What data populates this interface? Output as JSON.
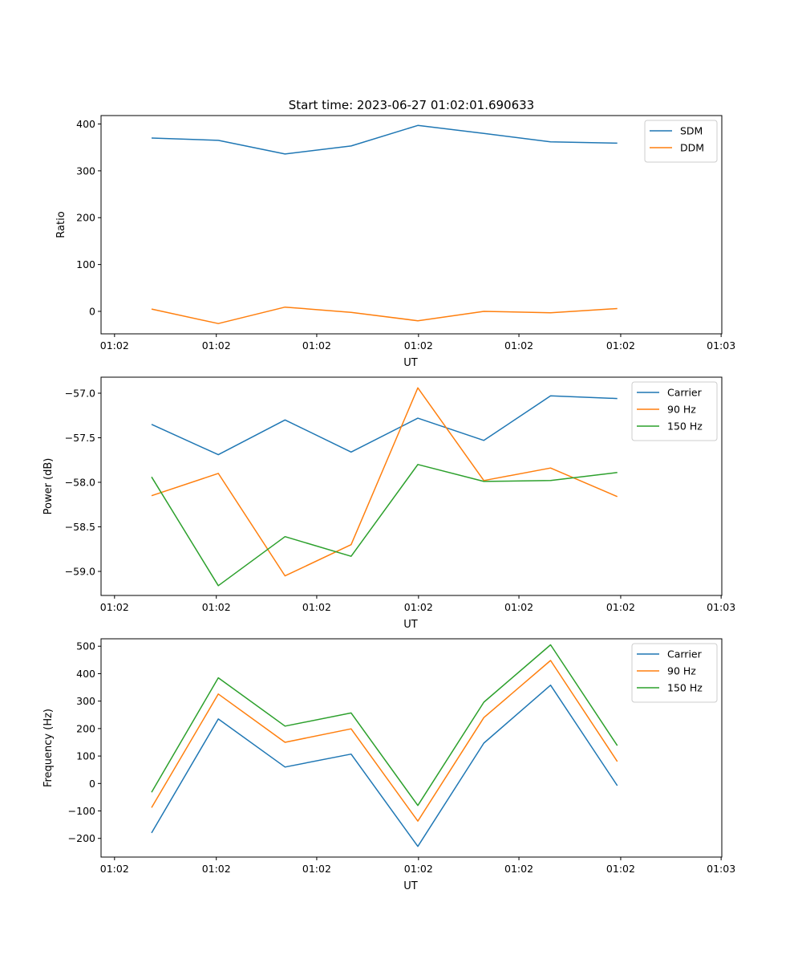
{
  "figure_title": "Start time: 2023-06-27 01:02:01.690633",
  "colors": {
    "blue": "#1f77b4",
    "orange": "#ff7f0e",
    "green": "#2ca02c"
  },
  "chart_data": [
    {
      "type": "line",
      "title": "Start time: 2023-06-27 01:02:01.690633",
      "xlabel": "UT",
      "ylabel": "Ratio",
      "xlim": [
        0,
        9.21
      ],
      "ylim": [
        -48,
        418
      ],
      "x": [
        0.75,
        1.74,
        2.73,
        3.71,
        4.7,
        5.68,
        6.67,
        7.66
      ],
      "xticks": [
        0.2,
        1.71,
        3.2,
        4.71,
        6.2,
        7.71,
        9.2
      ],
      "xticklabels": [
        "01:02",
        "01:02",
        "01:02",
        "01:02",
        "01:02",
        "01:02",
        "01:03"
      ],
      "yticks": [
        0,
        100,
        200,
        300,
        400
      ],
      "yticklabels": [
        "0",
        "100",
        "200",
        "300",
        "400"
      ],
      "grid": false,
      "legend_position": "top-right",
      "series": [
        {
          "name": "SDM",
          "color": "#1f77b4",
          "values": [
            370,
            365,
            336,
            353,
            397,
            380,
            362,
            359
          ]
        },
        {
          "name": "DDM",
          "color": "#ff7f0e",
          "values": [
            5,
            -26,
            9,
            -2,
            -20,
            0,
            -3,
            6
          ]
        }
      ]
    },
    {
      "type": "line",
      "title": "",
      "xlabel": "UT",
      "ylabel": "Power (dB)",
      "xlim": [
        0,
        9.21
      ],
      "ylim": [
        -59.27,
        -56.82
      ],
      "x": [
        0.75,
        1.74,
        2.73,
        3.71,
        4.7,
        5.68,
        6.67,
        7.66
      ],
      "xticks": [
        0.2,
        1.71,
        3.2,
        4.71,
        6.2,
        7.71,
        9.2
      ],
      "xticklabels": [
        "01:02",
        "01:02",
        "01:02",
        "01:02",
        "01:02",
        "01:02",
        "01:03"
      ],
      "yticks": [
        -57.0,
        -57.5,
        -58.0,
        -58.5,
        -59.0
      ],
      "yticklabels": [
        "−57.0",
        "−57.5",
        "−58.0",
        "−58.5",
        "−59.0"
      ],
      "grid": false,
      "legend_position": "top-right",
      "series": [
        {
          "name": "Carrier",
          "color": "#1f77b4",
          "values": [
            -57.35,
            -57.69,
            -57.3,
            -57.66,
            -57.28,
            -57.53,
            -57.03,
            -57.06
          ]
        },
        {
          "name": "90 Hz",
          "color": "#ff7f0e",
          "values": [
            -58.15,
            -57.9,
            -59.05,
            -58.7,
            -56.94,
            -57.98,
            -57.84,
            -58.16
          ]
        },
        {
          "name": "150 Hz",
          "color": "#2ca02c",
          "values": [
            -57.94,
            -59.16,
            -58.61,
            -58.83,
            -57.8,
            -57.99,
            -57.98,
            -57.89
          ]
        }
      ]
    },
    {
      "type": "line",
      "title": "",
      "xlabel": "UT",
      "ylabel": "Frequency (Hz)",
      "xlim": [
        0,
        9.21
      ],
      "ylim": [
        -268,
        527
      ],
      "x": [
        0.75,
        1.74,
        2.73,
        3.71,
        4.7,
        5.68,
        6.67,
        7.66
      ],
      "xticks": [
        0.2,
        1.71,
        3.2,
        4.71,
        6.2,
        7.71,
        9.2
      ],
      "xticklabels": [
        "01:02",
        "01:02",
        "01:02",
        "01:02",
        "01:02",
        "01:02",
        "01:03"
      ],
      "yticks": [
        -200,
        -100,
        0,
        100,
        200,
        300,
        400,
        500
      ],
      "yticklabels": [
        "−200",
        "−100",
        "0",
        "100",
        "200",
        "300",
        "400",
        "500"
      ],
      "grid": false,
      "legend_position": "top-right",
      "series": [
        {
          "name": "Carrier",
          "color": "#1f77b4",
          "values": [
            -180,
            235,
            60,
            107,
            -229,
            147,
            358,
            -8
          ]
        },
        {
          "name": "90 Hz",
          "color": "#ff7f0e",
          "values": [
            -88,
            326,
            150,
            199,
            -137,
            240,
            448,
            80
          ]
        },
        {
          "name": "150 Hz",
          "color": "#2ca02c",
          "values": [
            -32,
            385,
            209,
            257,
            -80,
            296,
            505,
            138
          ]
        }
      ]
    }
  ]
}
